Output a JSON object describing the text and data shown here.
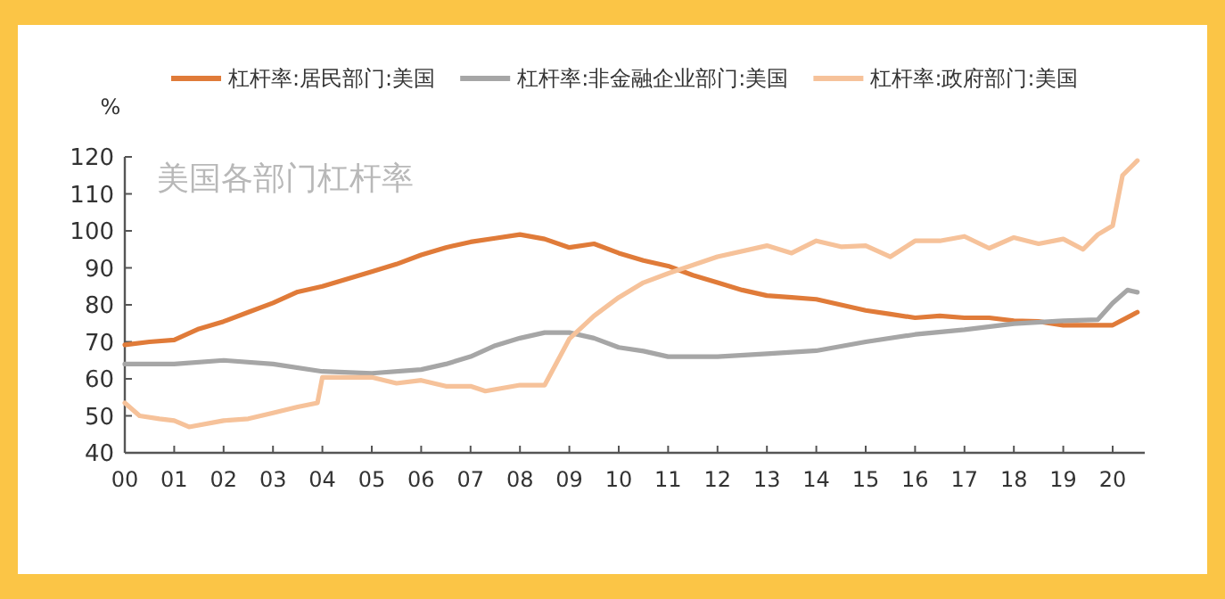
{
  "chart_data": {
    "type": "line",
    "title": "美国各部门杠杆率",
    "ylabel": "%",
    "legend": "top",
    "xlim": [
      0,
      20.65
    ],
    "ylim": [
      40,
      120
    ],
    "xticks": [
      {
        "value": 0,
        "label": "00"
      },
      {
        "value": 1,
        "label": "01"
      },
      {
        "value": 2,
        "label": "02"
      },
      {
        "value": 3,
        "label": "03"
      },
      {
        "value": 4,
        "label": "04"
      },
      {
        "value": 5,
        "label": "05"
      },
      {
        "value": 6,
        "label": "06"
      },
      {
        "value": 7,
        "label": "07"
      },
      {
        "value": 8,
        "label": "08"
      },
      {
        "value": 9,
        "label": "09"
      },
      {
        "value": 10,
        "label": "10"
      },
      {
        "value": 11,
        "label": "11"
      },
      {
        "value": 12,
        "label": "12"
      },
      {
        "value": 13,
        "label": "13"
      },
      {
        "value": 14,
        "label": "14"
      },
      {
        "value": 15,
        "label": "15"
      },
      {
        "value": 16,
        "label": "16"
      },
      {
        "value": 17,
        "label": "17"
      },
      {
        "value": 18,
        "label": "18"
      },
      {
        "value": 19,
        "label": "19"
      },
      {
        "value": 20,
        "label": "20"
      }
    ],
    "yticks": [
      40,
      50,
      60,
      70,
      80,
      90,
      100,
      110,
      120
    ],
    "series": [
      {
        "name": "杠杆率:居民部门:美国",
        "color": "#e07b39",
        "x": [
          0,
          0.5,
          1,
          1.5,
          2,
          2.5,
          3,
          3.5,
          4,
          4.5,
          5,
          5.5,
          6,
          6.5,
          7,
          7.5,
          8,
          8.5,
          9,
          9.5,
          10,
          10.5,
          11,
          11.5,
          12,
          12.5,
          13,
          13.5,
          14,
          14.5,
          15,
          15.5,
          16,
          16.5,
          17,
          17.5,
          18,
          18.5,
          19,
          19.5,
          20,
          20.5
        ],
        "values": [
          69.2,
          70,
          70.5,
          73.5,
          75.5,
          78,
          80.5,
          83.5,
          85,
          87,
          89,
          91,
          93.5,
          95.5,
          97,
          98,
          99,
          97.8,
          95.5,
          96.5,
          94,
          92,
          90.5,
          88,
          86,
          84,
          82.5,
          82,
          81.5,
          80,
          78.5,
          77.5,
          76.5,
          77,
          76.5,
          76.5,
          75.7,
          75.5,
          74.5,
          74.5,
          74.5,
          78
        ]
      },
      {
        "name": "杠杆率:非金融企业部门:美国",
        "color": "#a6a6a6",
        "x": [
          0,
          1,
          2,
          3,
          4,
          5,
          6,
          6.5,
          7,
          7.5,
          8,
          8.5,
          9,
          9.5,
          10,
          10.5,
          11,
          12,
          13,
          14,
          15,
          16,
          17,
          18,
          19,
          19.7,
          20,
          20.3,
          20.5
        ],
        "values": [
          64,
          64,
          65,
          64,
          62,
          61.5,
          62.5,
          64,
          66,
          69,
          71,
          72.5,
          72.5,
          71,
          68.5,
          67.5,
          66,
          66,
          66.8,
          67.6,
          70,
          72,
          73.3,
          74.9,
          75.7,
          76,
          80.5,
          84,
          83.4
        ]
      },
      {
        "name": "杠杆率:政府部门:美国",
        "color": "#f6c29a",
        "x": [
          0,
          0.3,
          0.7,
          1,
          1.3,
          2,
          2.5,
          3,
          3.5,
          3.9,
          4,
          4.5,
          5,
          5.5,
          6,
          6.5,
          7,
          7.3,
          8,
          8.5,
          9,
          9.5,
          10,
          10.5,
          11,
          12,
          13,
          13.5,
          14,
          14.5,
          15,
          15.5,
          16,
          16.5,
          17,
          17.5,
          18,
          18.5,
          19,
          19.4,
          19.7,
          20,
          20.2,
          20.5
        ],
        "values": [
          53.5,
          50,
          49.2,
          48.7,
          47,
          48.7,
          49.2,
          50.8,
          52.4,
          53.5,
          60.4,
          60.4,
          60.4,
          58.8,
          59.6,
          58,
          58,
          56.7,
          58.3,
          58.3,
          70.8,
          77,
          82,
          86,
          88.5,
          93,
          96,
          94,
          97.3,
          95.7,
          96,
          93,
          97.3,
          97.3,
          98.5,
          95.3,
          98.2,
          96.5,
          97.8,
          95,
          99,
          101.4,
          115,
          119
        ]
      }
    ]
  }
}
